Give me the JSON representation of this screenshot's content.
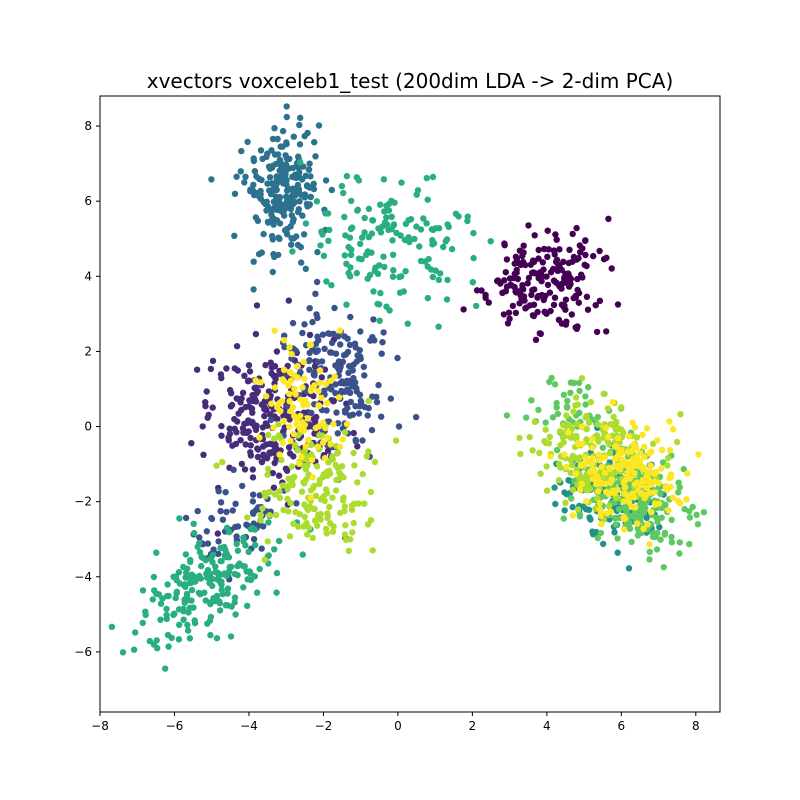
{
  "chart_data": {
    "type": "scatter",
    "title": "xvectors voxceleb1_test (200dim LDA -> 2-dim PCA)",
    "xlabel": "",
    "ylabel": "",
    "xlim": [
      -8.0,
      8.65
    ],
    "ylim": [
      -7.6,
      8.8
    ],
    "xticks": [
      -8,
      -6,
      -4,
      -2,
      0,
      2,
      4,
      6,
      8
    ],
    "yticks": [
      -6,
      -4,
      -2,
      0,
      2,
      4,
      6,
      8
    ],
    "grid": false,
    "legend": "none",
    "colormap": "viridis",
    "clusters": [
      {
        "color": "#440154",
        "center": [
          3.9,
          3.9
        ],
        "spread": [
          0.75,
          0.65
        ],
        "rotation": 0,
        "count": 190,
        "seed": 11
      },
      {
        "color": "#472c7a",
        "center": [
          -3.3,
          0.2
        ],
        "spread": [
          0.85,
          1.0
        ],
        "rotation": 0.2,
        "count": 260,
        "seed": 12
      },
      {
        "color": "#3b518b",
        "center": [
          -1.7,
          1.2
        ],
        "spread": [
          0.7,
          0.9
        ],
        "rotation": 0.3,
        "count": 170,
        "seed": 13
      },
      {
        "color": "#3b518b",
        "center": [
          -4.3,
          -2.6
        ],
        "spread": [
          0.7,
          0.55
        ],
        "rotation": 0.6,
        "count": 60,
        "seed": 14
      },
      {
        "color": "#2c728e",
        "center": [
          -3.1,
          6.3
        ],
        "spread": [
          0.55,
          0.8
        ],
        "rotation": 0,
        "count": 230,
        "seed": 15
      },
      {
        "color": "#21918c",
        "center": [
          5.7,
          -1.8
        ],
        "spread": [
          0.75,
          0.6
        ],
        "rotation": -0.3,
        "count": 160,
        "seed": 16
      },
      {
        "color": "#28ae80",
        "center": [
          -0.2,
          5.0
        ],
        "spread": [
          1.2,
          0.8
        ],
        "rotation": -0.3,
        "count": 150,
        "seed": 17
      },
      {
        "color": "#28ae80",
        "center": [
          -5.2,
          -4.2
        ],
        "spread": [
          1.1,
          0.55
        ],
        "rotation": 0.65,
        "count": 200,
        "seed": 18
      },
      {
        "color": "#5ec962",
        "center": [
          6.3,
          -1.9
        ],
        "spread": [
          0.75,
          0.65
        ],
        "rotation": -0.3,
        "count": 200,
        "seed": 19
      },
      {
        "color": "#5ec962",
        "center": [
          4.6,
          0.4
        ],
        "spread": [
          0.6,
          0.45
        ],
        "rotation": 0,
        "count": 40,
        "seed": 20
      },
      {
        "color": "#addc30",
        "center": [
          5.2,
          -0.7
        ],
        "spread": [
          0.8,
          0.7
        ],
        "rotation": -0.3,
        "count": 180,
        "seed": 21
      },
      {
        "color": "#addc30",
        "center": [
          -2.2,
          -1.6
        ],
        "spread": [
          0.75,
          0.8
        ],
        "rotation": 0.2,
        "count": 170,
        "seed": 22
      },
      {
        "color": "#fde725",
        "center": [
          6.1,
          -1.3
        ],
        "spread": [
          0.8,
          0.6
        ],
        "rotation": -0.3,
        "count": 180,
        "seed": 23
      },
      {
        "color": "#fde725",
        "center": [
          -2.6,
          0.4
        ],
        "spread": [
          0.6,
          1.0
        ],
        "rotation": 0,
        "count": 90,
        "seed": 24
      }
    ]
  }
}
